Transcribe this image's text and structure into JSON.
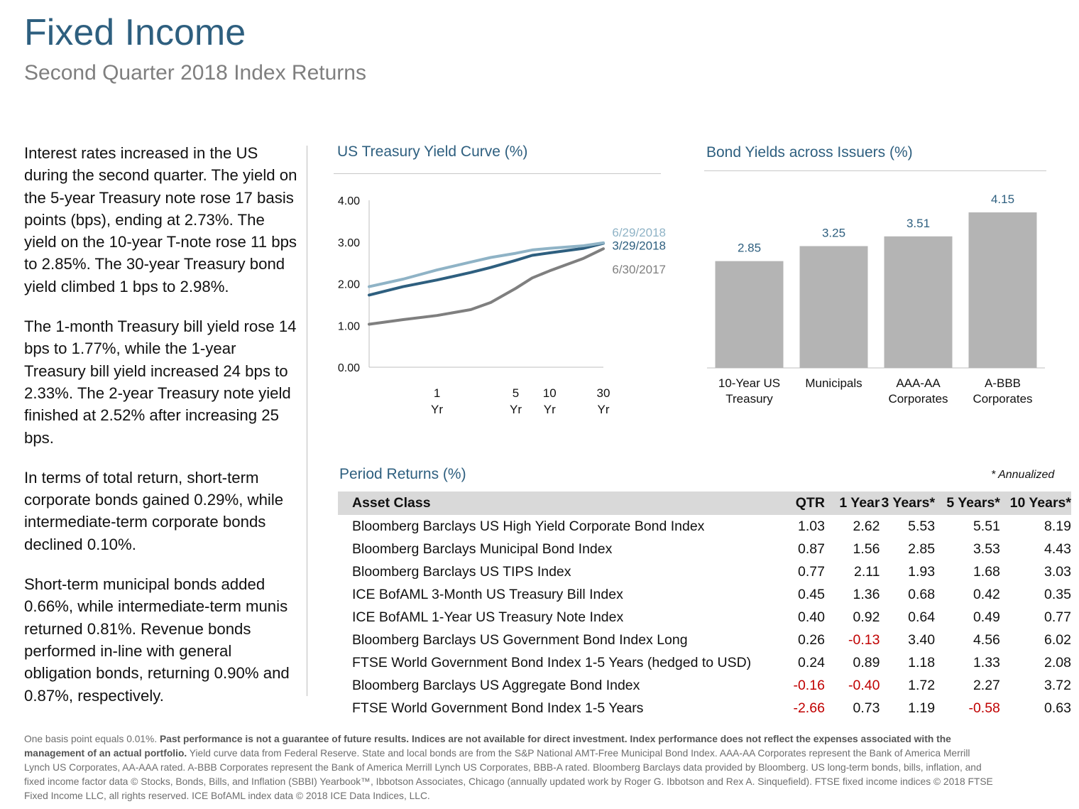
{
  "header": {
    "title": "Fixed Income",
    "subtitle": "Second Quarter 2018 Index Returns"
  },
  "commentary": [
    "Interest rates increased in the US during the second quarter. The yield on the 5-year Treasury note rose 17 basis points (bps), ending at 2.73%. The yield on the 10-year T-note rose 11 bps to 2.85%. The 30-year Treasury bond yield climbed 1 bps to 2.98%.",
    "The 1-month Treasury bill yield rose 14 bps to 1.77%, while the 1-year Treasury bill yield increased 24 bps to 2.33%. The 2-year Treasury note yield finished at 2.52% after increasing 25 bps.",
    "In terms of total return, short-term corporate bonds gained 0.29%, while intermediate-term corporate bonds declined 0.10%.",
    "Short-term municipal bonds added 0.66%, while intermediate-term munis returned 0.81%. Revenue bonds performed in-line with general obligation bonds, returning 0.90% and 0.87%, respectively."
  ],
  "chart_data": [
    {
      "type": "line",
      "title": "US Treasury Yield Curve (%)",
      "xlabel": "",
      "ylabel": "",
      "x": [
        0.25,
        0.5,
        1,
        2,
        3,
        5,
        7,
        10,
        20,
        30
      ],
      "xticks": [
        {
          "value": 1,
          "label": [
            "1",
            "Yr"
          ]
        },
        {
          "value": 5,
          "label": [
            "5",
            "Yr"
          ]
        },
        {
          "value": 10,
          "label": [
            "10",
            "Yr"
          ]
        },
        {
          "value": 30,
          "label": [
            "30",
            "Yr"
          ]
        }
      ],
      "ylim": [
        0,
        4
      ],
      "yticks": [
        "0.00",
        "1.00",
        "2.00",
        "3.00",
        "4.00"
      ],
      "grid": false,
      "legend": "labels at right end of lines",
      "series": [
        {
          "name": "6/29/2018",
          "color": "#8fb3c6",
          "values": [
            1.93,
            2.11,
            2.33,
            2.52,
            2.63,
            2.73,
            2.81,
            2.85,
            2.91,
            2.98
          ]
        },
        {
          "name": "3/29/2018",
          "color": "#2e5f7f",
          "values": [
            1.73,
            1.93,
            2.09,
            2.27,
            2.39,
            2.56,
            2.68,
            2.74,
            2.85,
            2.97
          ]
        },
        {
          "name": "6/30/2017",
          "color": "#7f7f7f",
          "values": [
            1.03,
            1.14,
            1.24,
            1.38,
            1.55,
            1.89,
            2.14,
            2.31,
            2.61,
            2.84
          ]
        }
      ]
    },
    {
      "type": "bar",
      "title": "Bond Yields across Issuers (%)",
      "categories": [
        [
          "10-Year US",
          "Treasury"
        ],
        [
          "Municipals"
        ],
        [
          "AAA-AA",
          "Corporates"
        ],
        [
          "A-BBB",
          "Corporates"
        ]
      ],
      "values": [
        2.85,
        3.25,
        3.51,
        4.15
      ],
      "value_labels": [
        "2.85",
        "3.25",
        "3.51",
        "4.15"
      ],
      "ylim": [
        0,
        4.7
      ],
      "bar_color": "#b4b4b4",
      "label_color": "#2e5f7f"
    },
    {
      "type": "table",
      "title": "Period Returns (%)",
      "note": "* Annualized",
      "columns": [
        "Asset Class",
        "QTR",
        "1 Year",
        "3 Years*",
        "5 Years*",
        "10 Years*"
      ],
      "rows": [
        [
          "Bloomberg Barclays US High Yield Corporate Bond Index",
          "1.03",
          "2.62",
          "5.53",
          "5.51",
          "8.19"
        ],
        [
          "Bloomberg Barclays Municipal Bond Index",
          "0.87",
          "1.56",
          "2.85",
          "3.53",
          "4.43"
        ],
        [
          "Bloomberg Barclays US TIPS Index",
          "0.77",
          "2.11",
          "1.93",
          "1.68",
          "3.03"
        ],
        [
          "ICE BofAML 3-Month US Treasury Bill Index",
          "0.45",
          "1.36",
          "0.68",
          "0.42",
          "0.35"
        ],
        [
          "ICE BofAML 1-Year US Treasury Note Index",
          "0.40",
          "0.92",
          "0.64",
          "0.49",
          "0.77"
        ],
        [
          "Bloomberg Barclays US Government Bond Index Long",
          "0.26",
          "-0.13",
          "3.40",
          "4.56",
          "6.02"
        ],
        [
          "FTSE World Government Bond Index 1-5 Years (hedged to USD)",
          "0.24",
          "0.89",
          "1.18",
          "1.33",
          "2.08"
        ],
        [
          "Bloomberg Barclays US Aggregate Bond Index",
          "-0.16",
          "-0.40",
          "1.72",
          "2.27",
          "3.72"
        ],
        [
          "FTSE World Government Bond Index 1-5 Years",
          "-2.66",
          "0.73",
          "1.19",
          "-0.58",
          "0.63"
        ]
      ],
      "negative_color": "#c00000"
    }
  ],
  "footnote": {
    "lead": "One basis point equals 0.01%. ",
    "bold": "Past performance is not a guarantee of future results. Indices are not available for direct investment. Index performance does not reflect the expenses associated with the management of an actual portfolio.",
    "rest": " Yield curve data from Federal Reserve. State and local bonds are from the S&P National AMT-Free Municipal Bond Index. AAA-AA Corporates represent the Bank of America Merrill Lynch US Corporates, AA-AAA rated. A-BBB Corporates represent the Bank of America Merrill Lynch US Corporates, BBB-A rated. Bloomberg Barclays data provided by Bloomberg.  US long-term bonds, bills, inflation, and fixed income factor data © Stocks, Bonds, Bills, and Inflation (SBBI) Yearbook™, Ibbotson Associates, Chicago (annually updated work by Roger G. Ibbotson and Rex A. Sinquefield). FTSE fixed income indices © 2018 FTSE Fixed Income LLC, all rights reserved. ICE BofAML index data © 2018 ICE Data Indices, LLC."
  }
}
